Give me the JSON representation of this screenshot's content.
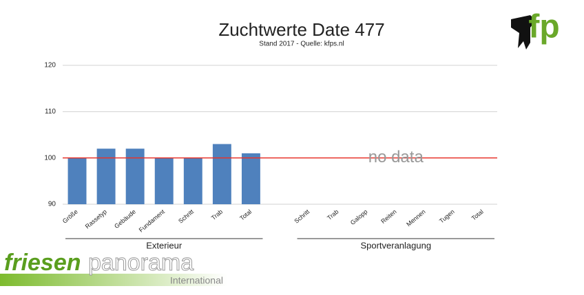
{
  "chart_data": {
    "type": "bar",
    "title": "Zuchtwerte Date 477",
    "subtitle": "Stand 2017 - Quelle: kfps.nl",
    "categories": [
      "Größe",
      "Rassetyp",
      "Gebäude",
      "Fundament",
      "Schritt",
      "Trab",
      "Total",
      null,
      "Schritt",
      "Trab",
      "Galopp",
      "Reiten",
      "Mennen",
      "Tugen",
      "Total"
    ],
    "values": [
      100,
      102,
      102,
      100,
      100,
      103,
      101,
      null,
      null,
      null,
      null,
      null,
      null,
      null,
      null
    ],
    "color": "#4f81bd",
    "ylim": [
      90,
      120
    ],
    "yticks": [
      90,
      100,
      110,
      120
    ],
    "grid": true,
    "reference_line": {
      "value": 100,
      "color": "#e8332a"
    },
    "annotation": "no data",
    "groups": [
      {
        "label": "Exterieur",
        "start": 0,
        "end": 6
      },
      {
        "label": "Sportveranlagung",
        "start": 8,
        "end": 14
      }
    ]
  },
  "logo": "fp",
  "brand": {
    "name_bold": "friesen",
    "name_light": "panorama",
    "tagline": "International"
  }
}
